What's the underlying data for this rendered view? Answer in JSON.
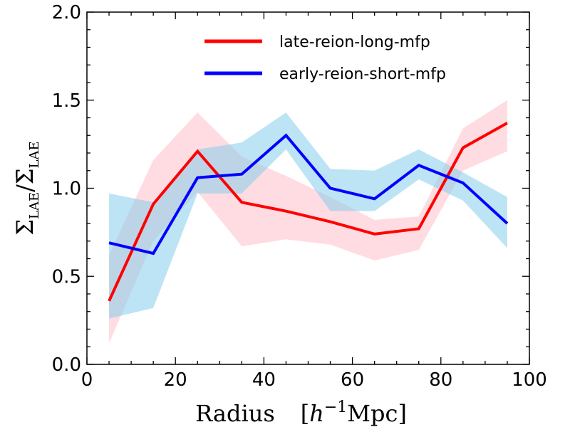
{
  "chart_data": {
    "type": "line",
    "xlabel": "Radius [h⁻¹Mpc]",
    "ylabel": "Σ_LAE/Σ̄_LAE",
    "xlim": [
      0,
      100
    ],
    "ylim": [
      0.0,
      2.0
    ],
    "x_ticks": [
      0,
      20,
      40,
      60,
      80,
      100
    ],
    "x_tick_labels": [
      "0",
      "20",
      "40",
      "60",
      "80",
      "100"
    ],
    "y_ticks": [
      0.0,
      0.5,
      1.0,
      1.5,
      2.0
    ],
    "y_tick_labels": [
      "0.0",
      "0.5",
      "1.0",
      "1.5",
      "2.0"
    ],
    "legend_position": "top-right",
    "x": [
      5,
      15,
      25,
      35,
      45,
      55,
      65,
      75,
      85,
      95
    ],
    "series": [
      {
        "name": "late-reion-long-mfp",
        "color": "#ff0000",
        "band_color": "#ffc0cb",
        "values": [
          0.36,
          0.91,
          1.21,
          0.92,
          0.87,
          0.81,
          0.74,
          0.77,
          1.23,
          1.37
        ],
        "lower": [
          0.12,
          0.7,
          0.98,
          0.67,
          0.71,
          0.68,
          0.59,
          0.65,
          1.1,
          1.21
        ],
        "upper": [
          0.62,
          1.16,
          1.43,
          1.18,
          1.07,
          0.95,
          0.82,
          0.84,
          1.34,
          1.5
        ]
      },
      {
        "name": "early-reion-short-mfp",
        "color": "#0000ff",
        "band_color": "#87ceeb",
        "values": [
          0.69,
          0.63,
          1.06,
          1.08,
          1.3,
          1.0,
          0.94,
          1.13,
          1.03,
          0.8
        ],
        "lower": [
          0.26,
          0.32,
          0.97,
          0.97,
          1.22,
          0.87,
          0.87,
          1.05,
          0.93,
          0.66
        ],
        "upper": [
          0.97,
          0.92,
          1.22,
          1.26,
          1.43,
          1.11,
          1.1,
          1.22,
          1.09,
          0.95
        ]
      }
    ]
  }
}
